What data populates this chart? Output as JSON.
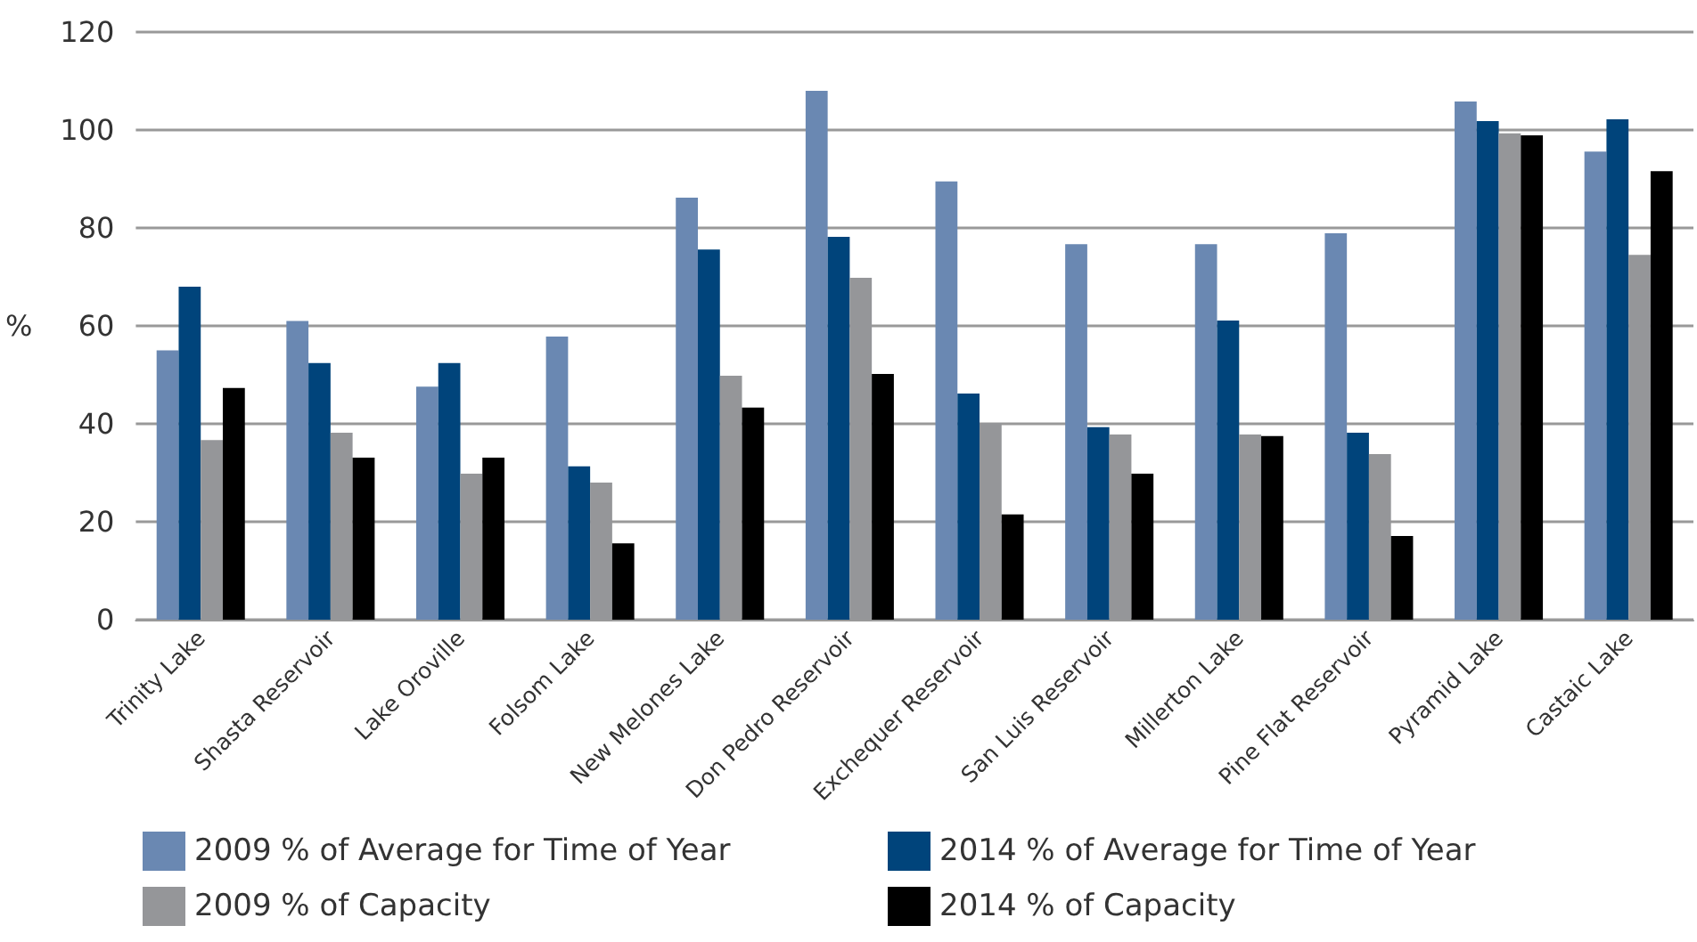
{
  "chart_data": {
    "type": "bar",
    "ylabel": "%",
    "categories": [
      "Trinity Lake",
      "Shasta Reservoir",
      "Lake Oroville",
      "Folsom Lake",
      "New Melones Lake",
      "Don Pedro Reservoir",
      "Exchequer Reservoir",
      "San Luis Reservoir",
      "Millerton Lake",
      "Pine Flat Reservoir",
      "Pyramid Lake",
      "Castaic Lake"
    ],
    "series": [
      {
        "name": "2009 % of Average for Time of Year",
        "color": "#6a88b2",
        "values": [
          55,
          61,
          47.6,
          57.8,
          86.2,
          108,
          89.5,
          76.7,
          76.7,
          78.9,
          105.8,
          95.6
        ]
      },
      {
        "name": "2014 % of Average for Time of Year",
        "color": "#00447b",
        "values": [
          68,
          52.4,
          52.4,
          31.3,
          75.6,
          78.2,
          46.2,
          39.3,
          61.1,
          38.2,
          101.8,
          102.2
        ]
      },
      {
        "name": "2009 % of Capacity",
        "color": "#959699",
        "values": [
          36.7,
          38.2,
          29.8,
          28,
          49.8,
          69.8,
          40.2,
          37.8,
          37.8,
          33.8,
          99.3,
          74.5
        ]
      },
      {
        "name": "2014 % of Capacity",
        "color": "#000000",
        "values": [
          47.3,
          33.1,
          33.1,
          15.6,
          43.3,
          50.2,
          21.5,
          29.8,
          37.5,
          17.1,
          98.9,
          91.6
        ]
      }
    ],
    "ylim": [
      0,
      120
    ],
    "yticks": [
      0,
      20,
      40,
      60,
      80,
      100,
      120
    ],
    "grid": "y",
    "legend": "bottom"
  }
}
